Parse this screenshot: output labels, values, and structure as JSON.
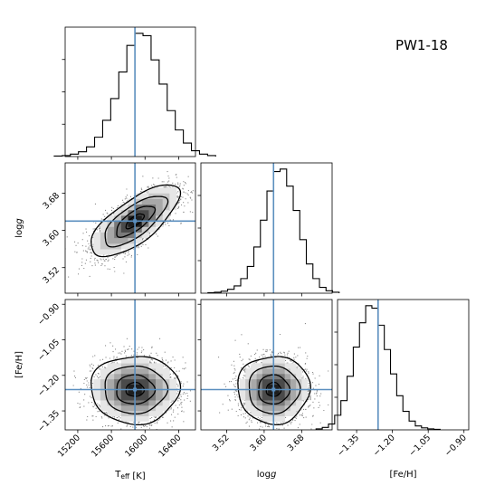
{
  "chart_data": {
    "type": "corner",
    "title": "PW1-18",
    "truth_color": "#5b8fbf",
    "parameters": [
      {
        "key": "teff",
        "label_main": "T",
        "label_sub": "eff",
        "label_unit": " [K]",
        "range": [
          15050,
          16600
        ],
        "ticks": [
          15200,
          15600,
          16000,
          16400
        ],
        "tick_labels": [
          "15200",
          "15600",
          "16000",
          "16400"
        ],
        "truth": 15880,
        "mean": 15880,
        "std": 240,
        "hist_counts": [
          1,
          2,
          5,
          10,
          20,
          40,
          75,
          120,
          175,
          230,
          255,
          250,
          200,
          150,
          95,
          55,
          28,
          12,
          5,
          2
        ]
      },
      {
        "key": "logg",
        "label_main": "log",
        "label_italic": "g",
        "label_unit": "",
        "range": [
          3.465,
          3.745
        ],
        "ticks": [
          3.52,
          3.6,
          3.68
        ],
        "tick_labels": [
          "3.52",
          "3.60",
          "3.68"
        ],
        "truth": 3.62,
        "mean": 3.62,
        "std": 0.035,
        "hist_counts": [
          1,
          2,
          4,
          8,
          15,
          30,
          55,
          95,
          150,
          210,
          250,
          255,
          220,
          170,
          110,
          60,
          30,
          12,
          5,
          2
        ]
      },
      {
        "key": "feh",
        "label_main": "[Fe/H]",
        "label_unit": "",
        "range": [
          -1.43,
          -0.88
        ],
        "ticks": [
          -1.35,
          -1.2,
          -1.05,
          -0.9
        ],
        "tick_labels": [
          "−1.35",
          "−1.20",
          "−1.05",
          "−0.90"
        ],
        "truth": -1.26,
        "mean": -1.26,
        "std": 0.065,
        "hist_counts": [
          2,
          5,
          12,
          30,
          60,
          110,
          170,
          220,
          255,
          250,
          215,
          165,
          115,
          70,
          38,
          18,
          8,
          4,
          2,
          1
        ]
      }
    ],
    "correlations": {
      "1-0": 0.72,
      "2-0": 0.0,
      "2-1": 0.0
    }
  }
}
